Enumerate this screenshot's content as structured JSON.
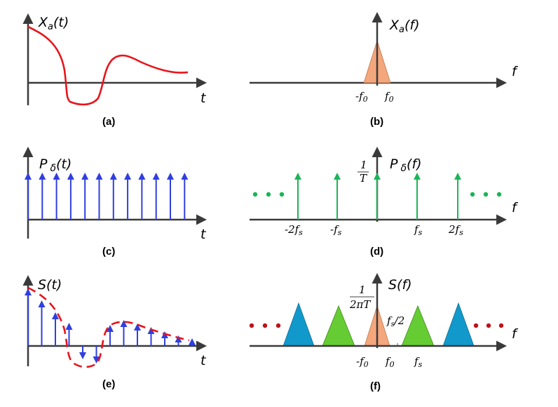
{
  "colors": {
    "axis": "#3a3a3a",
    "signal": "#e8141b",
    "impulse": "#2f3fe0",
    "comb": "#1bb556",
    "dots_green": "#1bb556",
    "dots_red": "#c0101b",
    "spectrum_orange": "#f4a77c",
    "spectrum_green": "#66cc33",
    "spectrum_blue": "#1199cc"
  },
  "panels": {
    "a": {
      "ylabel": "X",
      "ysub": "a",
      "yarg": "(t)",
      "xlabel": "t",
      "caption": "(a)"
    },
    "b": {
      "ylabel": "X",
      "ysub": "a",
      "yarg": "(f)",
      "xlabel": "f",
      "caption": "(b)",
      "tick_neg": "-f",
      "tick_neg_sub": "0",
      "tick_pos": "f",
      "tick_pos_sub": "0"
    },
    "c": {
      "ylabel": "P",
      "ysub": "δ",
      "yarg": "(t)",
      "xlabel": "t",
      "caption": "(c)"
    },
    "d": {
      "ylabel": "P",
      "ysub": "δ",
      "yarg": "(f)",
      "xlabel": "f",
      "caption": "(d)",
      "amp_num": "1",
      "amp_den": "T",
      "ticks": [
        {
          "pre": "-2f",
          "sub": "s"
        },
        {
          "pre": "-f",
          "sub": "s"
        },
        {
          "pre": "f",
          "sub": "s"
        },
        {
          "pre": "2f",
          "sub": "s"
        }
      ]
    },
    "e": {
      "ylabel": "S(t)",
      "xlabel": "t",
      "caption": "(e)"
    },
    "f": {
      "ylabel": "S(f)",
      "xlabel": "f",
      "caption": "(f)",
      "amp_num": "1",
      "amp_den": "2πT",
      "half_pre": "f",
      "half_sub": "s",
      "half_post": "/2",
      "tick_neg": "-f",
      "tick_neg_sub": "0",
      "tick_pos": "f",
      "tick_pos_sub": "0",
      "tick_fs": "f",
      "tick_fs_sub": "s"
    }
  }
}
